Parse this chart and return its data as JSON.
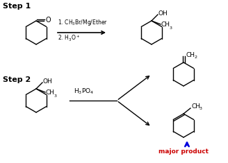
{
  "step1_label": "Step 1",
  "step2_label": "Step 2",
  "reagent1_text": "1. CH$_3$Br/Mg/Ether",
  "reagent2_text": "2. H$_3$O$^+$",
  "reagent3_text": "H$_3$PO$_4$",
  "major_product_text": "major product",
  "bg_color": "#ffffff",
  "line_color": "#000000",
  "blue_color": "#0000dd",
  "red_color": "#cc0000"
}
